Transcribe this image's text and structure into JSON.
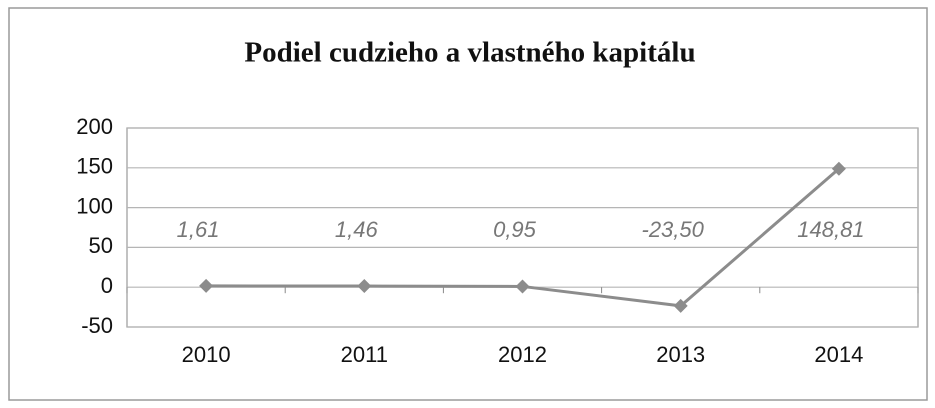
{
  "chart_data": {
    "type": "line",
    "title": "Podiel cudzieho a vlastného kapitálu",
    "categories": [
      "2010",
      "2011",
      "2012",
      "2013",
      "2014"
    ],
    "values": [
      1.61,
      1.46,
      0.95,
      -23.5,
      148.81
    ],
    "value_labels": [
      "1,61",
      "1,46",
      "0,95",
      "-23,50",
      "148,81"
    ],
    "color": "#8c8c8c",
    "ylim": [
      -50,
      200
    ],
    "yticks": [
      -50,
      0,
      50,
      100,
      150,
      200
    ],
    "grid": true
  }
}
